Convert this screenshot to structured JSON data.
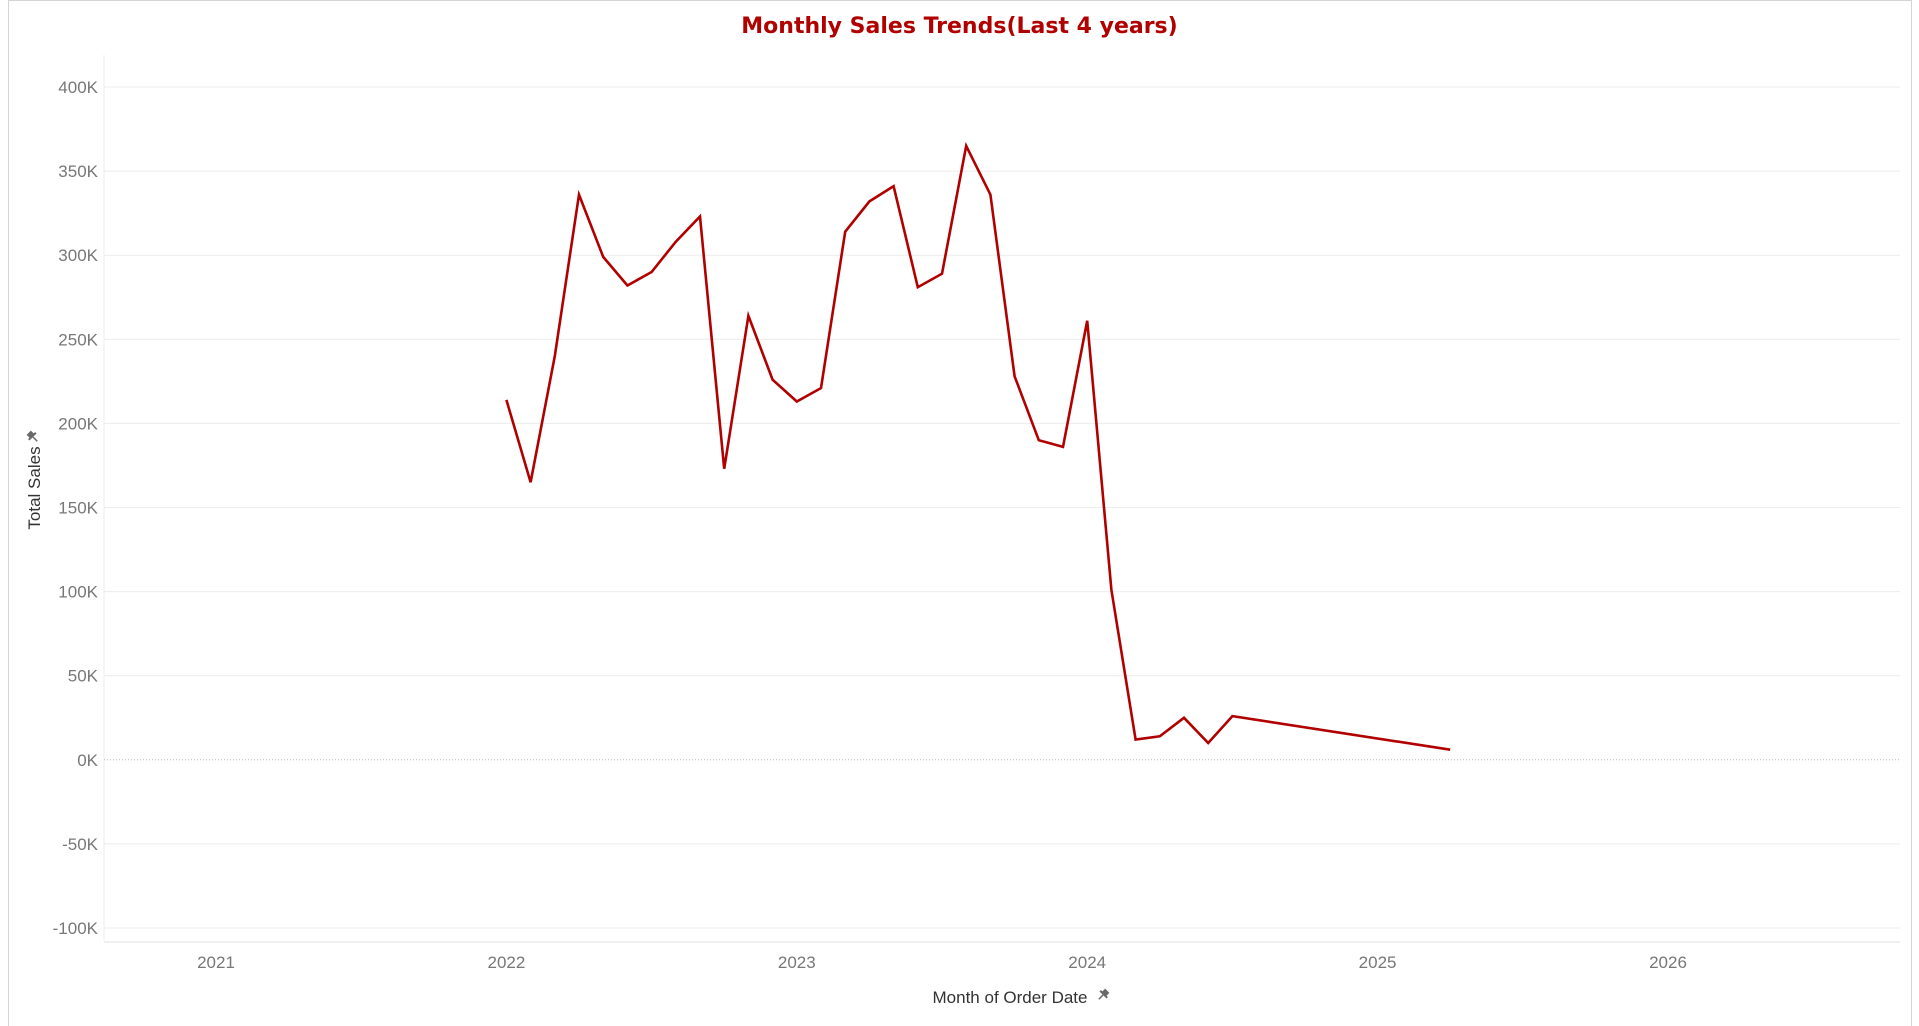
{
  "chart_data": {
    "type": "line",
    "title": "Monthly Sales Trends(Last 4 years)",
    "xlabel": "Month of Order Date",
    "ylabel": "Total Sales",
    "x_ticks": [
      "2021",
      "2022",
      "2023",
      "2024",
      "2025",
      "2026"
    ],
    "y_ticks": [
      "400K",
      "350K",
      "300K",
      "250K",
      "200K",
      "150K",
      "100K",
      "50K",
      "0K",
      "-50K",
      "-100K"
    ],
    "ylim": [
      -100000,
      400000
    ],
    "grid": true,
    "line_color": "#b00000",
    "series": [
      {
        "x": [
          "2022-01",
          "2022-02",
          "2022-03",
          "2022-04",
          "2022-05",
          "2022-06",
          "2022-07",
          "2022-08",
          "2022-09",
          "2022-10",
          "2022-11",
          "2022-12",
          "2023-01",
          "2023-02",
          "2023-03",
          "2023-04",
          "2023-05",
          "2023-06",
          "2023-07",
          "2023-08",
          "2023-09",
          "2023-10",
          "2023-11",
          "2023-12",
          "2024-01",
          "2024-02",
          "2024-03",
          "2024-04",
          "2024-05",
          "2024-06",
          "2024-07",
          "2025-04"
        ],
        "values": [
          214000,
          165000,
          240000,
          336000,
          299000,
          282000,
          290000,
          308000,
          323000,
          173000,
          264000,
          226000,
          213000,
          221000,
          314000,
          332000,
          341000,
          281000,
          289000,
          365000,
          336000,
          228000,
          190000,
          186000,
          261000,
          101000,
          12000,
          14000,
          25000,
          10000,
          26000,
          6000
        ]
      }
    ]
  }
}
